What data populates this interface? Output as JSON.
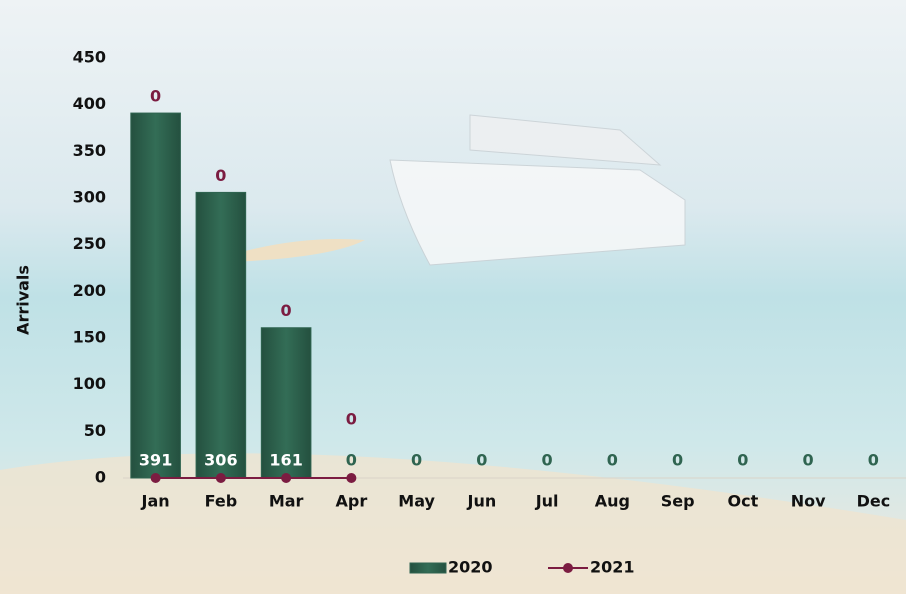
{
  "chart_data": {
    "type": "bar_line",
    "y_label": "Arrivals",
    "categories": [
      "Jan",
      "Feb",
      "Mar",
      "Apr",
      "May",
      "Jun",
      "Jul",
      "Aug",
      "Sep",
      "Oct",
      "Nov",
      "Dec"
    ],
    "series": [
      {
        "name": "2020",
        "type": "bar",
        "color": "#2f6450",
        "values": [
          391,
          306,
          161,
          0,
          0,
          0,
          0,
          0,
          0,
          0,
          0,
          0
        ]
      },
      {
        "name": "2021",
        "type": "line",
        "color": "#7b1c41",
        "values": [
          0,
          0,
          0,
          0,
          null,
          null,
          null,
          null,
          null,
          null,
          null,
          null
        ]
      }
    ],
    "ylim": [
      0,
      450
    ],
    "yticks": [
      0,
      50,
      100,
      150,
      200,
      250,
      300,
      350,
      400,
      450
    ],
    "legend": "bottom"
  }
}
